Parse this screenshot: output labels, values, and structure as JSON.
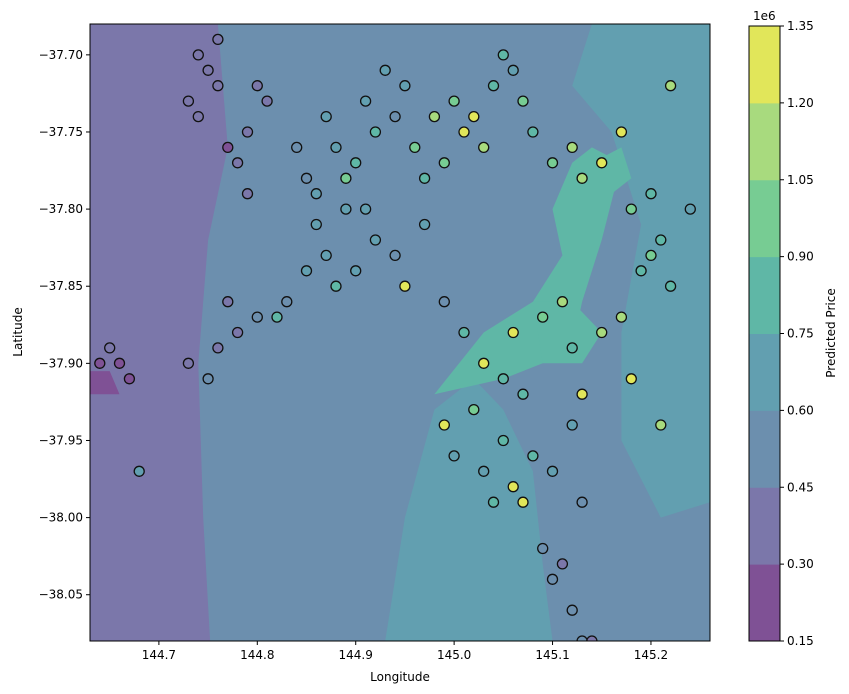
{
  "chart_data": {
    "type": "filled-contour-with-scatter",
    "title": "",
    "xlabel": "Longitude",
    "ylabel": "Latitude",
    "xlim": [
      144.63,
      145.26
    ],
    "ylim": [
      -38.08,
      -37.68
    ],
    "xticks": [
      144.7,
      144.8,
      144.9,
      145.0,
      145.1,
      145.2
    ],
    "xtick_labels": [
      "144.7",
      "144.8",
      "144.9",
      "145.0",
      "145.1",
      "145.2"
    ],
    "yticks": [
      -37.7,
      -37.75,
      -37.8,
      -37.85,
      -37.9,
      -37.95,
      -38.0,
      -38.05
    ],
    "ytick_labels": [
      "−37.70",
      "−37.75",
      "−37.80",
      "−37.85",
      "−37.90",
      "−37.95",
      "−38.00",
      "−38.05"
    ],
    "colorbar": {
      "label": "Predicted Price",
      "offset_label": "1e6",
      "levels": [
        150000,
        300000,
        450000,
        600000,
        750000,
        900000,
        1050000,
        1200000,
        1350000
      ],
      "tick_labels": [
        "0.15",
        "0.30",
        "0.45",
        "0.60",
        "0.75",
        "0.90",
        "1.05",
        "1.20",
        "1.35"
      ],
      "band_colors": [
        "#7f5195",
        "#7b77aa",
        "#6c8fae",
        "#629fb0",
        "#5fb7a6",
        "#77cc93",
        "#a8da7e",
        "#e1e65a"
      ]
    },
    "grid": false,
    "background_field": {
      "description_of_levels": "predicted price bands",
      "regions": [
        {
          "level": 1,
          "polygon": [
            [
              144.63,
              -37.68
            ],
            [
              144.76,
              -37.68
            ],
            [
              144.77,
              -37.76
            ],
            [
              144.75,
              -37.82
            ],
            [
              144.74,
              -37.9
            ],
            [
              144.745,
              -38.0
            ],
            [
              144.752,
              -38.08
            ],
            [
              144.63,
              -38.08
            ]
          ]
        },
        {
          "level": 0,
          "polygon": [
            [
              144.63,
              -37.905
            ],
            [
              144.65,
              -37.905
            ],
            [
              144.66,
              -37.92
            ],
            [
              144.63,
              -37.92
            ]
          ]
        },
        {
          "level": 3,
          "polygon": [
            [
              144.93,
              -38.08
            ],
            [
              144.95,
              -38.0
            ],
            [
              144.98,
              -37.93
            ],
            [
              145.02,
              -37.91
            ],
            [
              145.05,
              -37.93
            ],
            [
              145.08,
              -37.97
            ],
            [
              145.09,
              -38.03
            ],
            [
              145.1,
              -38.08
            ]
          ]
        },
        {
          "level": 4,
          "polygon": [
            [
              144.98,
              -37.92
            ],
            [
              145.03,
              -37.88
            ],
            [
              145.08,
              -37.86
            ],
            [
              145.11,
              -37.83
            ],
            [
              145.1,
              -37.8
            ],
            [
              145.12,
              -37.77
            ],
            [
              145.14,
              -37.76
            ],
            [
              145.17,
              -37.77
            ],
            [
              145.15,
              -37.82
            ],
            [
              145.13,
              -37.86
            ],
            [
              145.12,
              -37.89
            ],
            [
              145.09,
              -37.9
            ],
            [
              145.05,
              -37.91
            ]
          ]
        },
        {
          "level": 3,
          "polygon": [
            [
              145.14,
              -37.68
            ],
            [
              145.26,
              -37.68
            ],
            [
              145.26,
              -37.99
            ],
            [
              145.21,
              -38.0
            ],
            [
              145.17,
              -37.95
            ],
            [
              145.17,
              -37.88
            ],
            [
              145.19,
              -37.81
            ],
            [
              145.16,
              -37.75
            ],
            [
              145.12,
              -37.72
            ]
          ]
        },
        {
          "level": 4,
          "polygon": [
            [
              145.08,
              -37.86
            ],
            [
              145.12,
              -37.86
            ],
            [
              145.15,
              -37.88
            ],
            [
              145.13,
              -37.9
            ],
            [
              145.09,
              -37.9
            ]
          ]
        },
        {
          "level": 4,
          "polygon": [
            [
              145.14,
              -37.77
            ],
            [
              145.17,
              -37.76
            ],
            [
              145.18,
              -37.78
            ],
            [
              145.16,
              -37.79
            ]
          ]
        }
      ]
    },
    "points": [
      {
        "x": 144.74,
        "y": -37.7,
        "v": 350000
      },
      {
        "x": 144.75,
        "y": -37.71,
        "v": 320000
      },
      {
        "x": 144.76,
        "y": -37.69,
        "v": 380000
      },
      {
        "x": 144.73,
        "y": -37.73,
        "v": 340000
      },
      {
        "x": 144.74,
        "y": -37.74,
        "v": 400000
      },
      {
        "x": 144.76,
        "y": -37.72,
        "v": 300000
      },
      {
        "x": 144.77,
        "y": -37.76,
        "v": 280000
      },
      {
        "x": 144.78,
        "y": -37.77,
        "v": 330000
      },
      {
        "x": 144.79,
        "y": -37.75,
        "v": 360000
      },
      {
        "x": 144.8,
        "y": -37.72,
        "v": 410000
      },
      {
        "x": 144.81,
        "y": -37.73,
        "v": 370000
      },
      {
        "x": 144.79,
        "y": -37.79,
        "v": 350000
      },
      {
        "x": 144.77,
        "y": -37.86,
        "v": 420000
      },
      {
        "x": 144.78,
        "y": -37.88,
        "v": 390000
      },
      {
        "x": 144.8,
        "y": -37.87,
        "v": 500000
      },
      {
        "x": 144.73,
        "y": -37.9,
        "v": 410000
      },
      {
        "x": 144.75,
        "y": -37.91,
        "v": 480000
      },
      {
        "x": 144.76,
        "y": -37.89,
        "v": 380000
      },
      {
        "x": 144.65,
        "y": -37.89,
        "v": 310000
      },
      {
        "x": 144.66,
        "y": -37.9,
        "v": 290000
      },
      {
        "x": 144.67,
        "y": -37.91,
        "v": 270000
      },
      {
        "x": 144.64,
        "y": -37.9,
        "v": 260000
      },
      {
        "x": 144.68,
        "y": -37.97,
        "v": 600000
      },
      {
        "x": 144.84,
        "y": -37.76,
        "v": 520000
      },
      {
        "x": 144.85,
        "y": -37.78,
        "v": 560000
      },
      {
        "x": 144.86,
        "y": -37.79,
        "v": 610000
      },
      {
        "x": 144.87,
        "y": -37.74,
        "v": 700000
      },
      {
        "x": 144.88,
        "y": -37.76,
        "v": 650000
      },
      {
        "x": 144.89,
        "y": -37.8,
        "v": 720000
      },
      {
        "x": 144.9,
        "y": -37.77,
        "v": 780000
      },
      {
        "x": 144.91,
        "y": -37.73,
        "v": 690000
      },
      {
        "x": 144.92,
        "y": -37.75,
        "v": 820000
      },
      {
        "x": 144.93,
        "y": -37.71,
        "v": 610000
      },
      {
        "x": 144.94,
        "y": -37.74,
        "v": 580000
      },
      {
        "x": 144.95,
        "y": -37.72,
        "v": 740000
      },
      {
        "x": 144.96,
        "y": -37.76,
        "v": 900000
      },
      {
        "x": 144.97,
        "y": -37.78,
        "v": 870000
      },
      {
        "x": 144.98,
        "y": -37.74,
        "v": 1100000
      },
      {
        "x": 144.99,
        "y": -37.77,
        "v": 930000
      },
      {
        "x": 145.0,
        "y": -37.73,
        "v": 980000
      },
      {
        "x": 145.01,
        "y": -37.75,
        "v": 1200000
      },
      {
        "x": 145.02,
        "y": -37.74,
        "v": 1320000
      },
      {
        "x": 145.03,
        "y": -37.76,
        "v": 1050000
      },
      {
        "x": 145.04,
        "y": -37.72,
        "v": 820000
      },
      {
        "x": 145.05,
        "y": -37.7,
        "v": 760000
      },
      {
        "x": 145.06,
        "y": -37.71,
        "v": 690000
      },
      {
        "x": 145.07,
        "y": -37.73,
        "v": 930000
      },
      {
        "x": 145.08,
        "y": -37.75,
        "v": 870000
      },
      {
        "x": 145.1,
        "y": -37.77,
        "v": 990000
      },
      {
        "x": 145.12,
        "y": -37.76,
        "v": 1080000
      },
      {
        "x": 145.13,
        "y": -37.78,
        "v": 1150000
      },
      {
        "x": 145.15,
        "y": -37.77,
        "v": 1250000
      },
      {
        "x": 145.17,
        "y": -37.75,
        "v": 1330000
      },
      {
        "x": 145.18,
        "y": -37.8,
        "v": 950000
      },
      {
        "x": 145.2,
        "y": -37.79,
        "v": 860000
      },
      {
        "x": 145.21,
        "y": -37.82,
        "v": 780000
      },
      {
        "x": 145.22,
        "y": -37.72,
        "v": 1180000
      },
      {
        "x": 145.24,
        "y": -37.8,
        "v": 720000
      },
      {
        "x": 144.87,
        "y": -37.83,
        "v": 620000
      },
      {
        "x": 144.88,
        "y": -37.85,
        "v": 750000
      },
      {
        "x": 144.9,
        "y": -37.84,
        "v": 680000
      },
      {
        "x": 144.92,
        "y": -37.82,
        "v": 710000
      },
      {
        "x": 144.94,
        "y": -37.83,
        "v": 560000
      },
      {
        "x": 144.95,
        "y": -37.85,
        "v": 1320000
      },
      {
        "x": 144.97,
        "y": -37.81,
        "v": 640000
      },
      {
        "x": 144.99,
        "y": -37.86,
        "v": 590000
      },
      {
        "x": 145.01,
        "y": -37.88,
        "v": 830000
      },
      {
        "x": 145.03,
        "y": -37.9,
        "v": 1300000
      },
      {
        "x": 145.05,
        "y": -37.91,
        "v": 890000
      },
      {
        "x": 145.06,
        "y": -37.88,
        "v": 1340000
      },
      {
        "x": 145.07,
        "y": -37.92,
        "v": 780000
      },
      {
        "x": 145.09,
        "y": -37.87,
        "v": 980000
      },
      {
        "x": 145.11,
        "y": -37.86,
        "v": 1060000
      },
      {
        "x": 145.12,
        "y": -37.89,
        "v": 870000
      },
      {
        "x": 145.13,
        "y": -37.92,
        "v": 1320000
      },
      {
        "x": 145.15,
        "y": -37.88,
        "v": 1120000
      },
      {
        "x": 145.17,
        "y": -37.87,
        "v": 1190000
      },
      {
        "x": 145.18,
        "y": -37.91,
        "v": 1340000
      },
      {
        "x": 145.19,
        "y": -37.84,
        "v": 820000
      },
      {
        "x": 145.2,
        "y": -37.83,
        "v": 1000000
      },
      {
        "x": 145.21,
        "y": -37.94,
        "v": 1100000
      },
      {
        "x": 145.22,
        "y": -37.85,
        "v": 870000
      },
      {
        "x": 144.99,
        "y": -37.94,
        "v": 1320000
      },
      {
        "x": 145.0,
        "y": -37.96,
        "v": 720000
      },
      {
        "x": 145.02,
        "y": -37.93,
        "v": 960000
      },
      {
        "x": 145.03,
        "y": -37.97,
        "v": 650000
      },
      {
        "x": 145.04,
        "y": -37.99,
        "v": 780000
      },
      {
        "x": 145.05,
        "y": -37.95,
        "v": 880000
      },
      {
        "x": 145.06,
        "y": -37.98,
        "v": 1300000
      },
      {
        "x": 145.07,
        "y": -37.99,
        "v": 1320000
      },
      {
        "x": 145.08,
        "y": -37.96,
        "v": 840000
      },
      {
        "x": 145.09,
        "y": -38.02,
        "v": 450000
      },
      {
        "x": 145.1,
        "y": -38.04,
        "v": 520000
      },
      {
        "x": 145.11,
        "y": -38.03,
        "v": 430000
      },
      {
        "x": 145.12,
        "y": -38.06,
        "v": 470000
      },
      {
        "x": 145.13,
        "y": -38.08,
        "v": 500000
      },
      {
        "x": 145.14,
        "y": -38.08,
        "v": 420000
      },
      {
        "x": 145.1,
        "y": -37.97,
        "v": 730000
      },
      {
        "x": 145.12,
        "y": -37.94,
        "v": 680000
      },
      {
        "x": 145.13,
        "y": -37.99,
        "v": 590000
      },
      {
        "x": 144.82,
        "y": -37.87,
        "v": 800000
      },
      {
        "x": 144.83,
        "y": -37.86,
        "v": 560000
      },
      {
        "x": 144.85,
        "y": -37.84,
        "v": 720000
      },
      {
        "x": 144.86,
        "y": -37.81,
        "v": 610000
      },
      {
        "x": 144.89,
        "y": -37.78,
        "v": 940000
      },
      {
        "x": 144.91,
        "y": -37.8,
        "v": 660000
      }
    ]
  }
}
